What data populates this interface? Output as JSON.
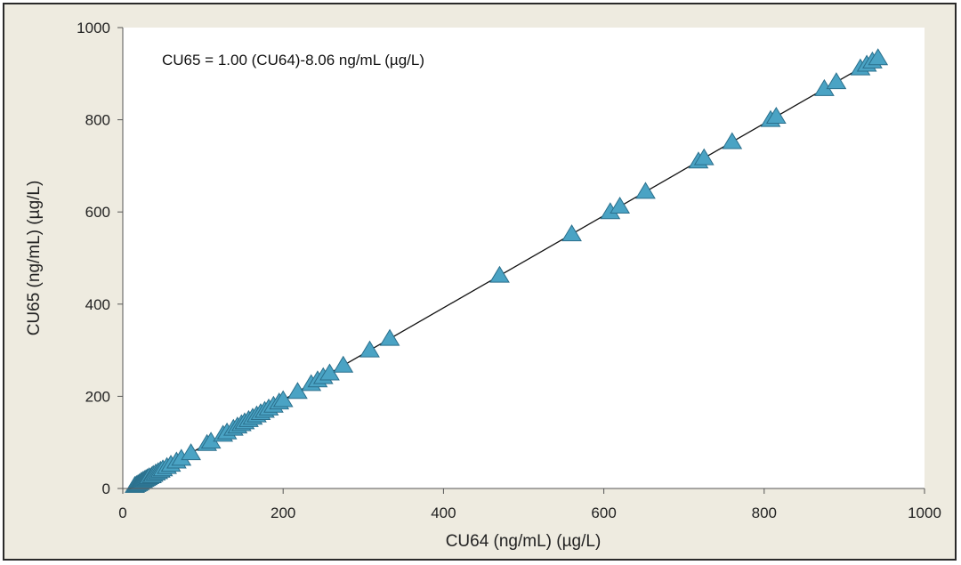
{
  "chart_data": {
    "type": "scatter",
    "title": "",
    "annotation": "CU65 = 1.00 (CU64)-8.06 ng/mL (µg/L)",
    "xlabel": "CU64 (ng/mL)  (µg/L)",
    "ylabel": "CU65 (ng/mL) (µg/L)",
    "xlim": [
      0,
      1000
    ],
    "ylim": [
      0,
      1000
    ],
    "x_ticks": [
      0,
      200,
      400,
      600,
      800,
      1000
    ],
    "y_ticks": [
      0,
      200,
      400,
      600,
      800,
      1000
    ],
    "grid": false,
    "legend": "none",
    "regression": {
      "slope": 1.0,
      "intercept": -8.06,
      "x_range": [
        15,
        945
      ]
    },
    "marker": "triangle",
    "colors": {
      "marker_fill": "#4aa3c4",
      "marker_stroke": "#2a6f8c",
      "line": "#111111",
      "background": "#eeebe0",
      "plot_area": "#ffffff"
    },
    "series": [
      {
        "points": [
          [
            15,
            6
          ],
          [
            17,
            8
          ],
          [
            19,
            10
          ],
          [
            21,
            12
          ],
          [
            23,
            15
          ],
          [
            25,
            17
          ],
          [
            27,
            19
          ],
          [
            29,
            21
          ],
          [
            31,
            23
          ],
          [
            33,
            25
          ],
          [
            36,
            27
          ],
          [
            38,
            30
          ],
          [
            41,
            33
          ],
          [
            44,
            36
          ],
          [
            47,
            39
          ],
          [
            50,
            42
          ],
          [
            55,
            47
          ],
          [
            60,
            52
          ],
          [
            67,
            59
          ],
          [
            73,
            65
          ],
          [
            85,
            77
          ],
          [
            105,
            97
          ],
          [
            110,
            102
          ],
          [
            125,
            117
          ],
          [
            130,
            122
          ],
          [
            138,
            130
          ],
          [
            143,
            135
          ],
          [
            148,
            140
          ],
          [
            152,
            144
          ],
          [
            157,
            149
          ],
          [
            162,
            154
          ],
          [
            167,
            159
          ],
          [
            172,
            164
          ],
          [
            177,
            169
          ],
          [
            182,
            174
          ],
          [
            188,
            180
          ],
          [
            195,
            187
          ],
          [
            200,
            192
          ],
          [
            218,
            210
          ],
          [
            235,
            227
          ],
          [
            243,
            235
          ],
          [
            250,
            242
          ],
          [
            258,
            250
          ],
          [
            275,
            267
          ],
          [
            308,
            300
          ],
          [
            333,
            325
          ],
          [
            470,
            462
          ],
          [
            560,
            552
          ],
          [
            608,
            600
          ],
          [
            620,
            612
          ],
          [
            652,
            644
          ],
          [
            718,
            710
          ],
          [
            725,
            717
          ],
          [
            760,
            752
          ],
          [
            808,
            800
          ],
          [
            815,
            807
          ],
          [
            875,
            867
          ],
          [
            890,
            882
          ],
          [
            920,
            912
          ],
          [
            928,
            920
          ],
          [
            935,
            927
          ],
          [
            942,
            934
          ]
        ]
      }
    ]
  }
}
